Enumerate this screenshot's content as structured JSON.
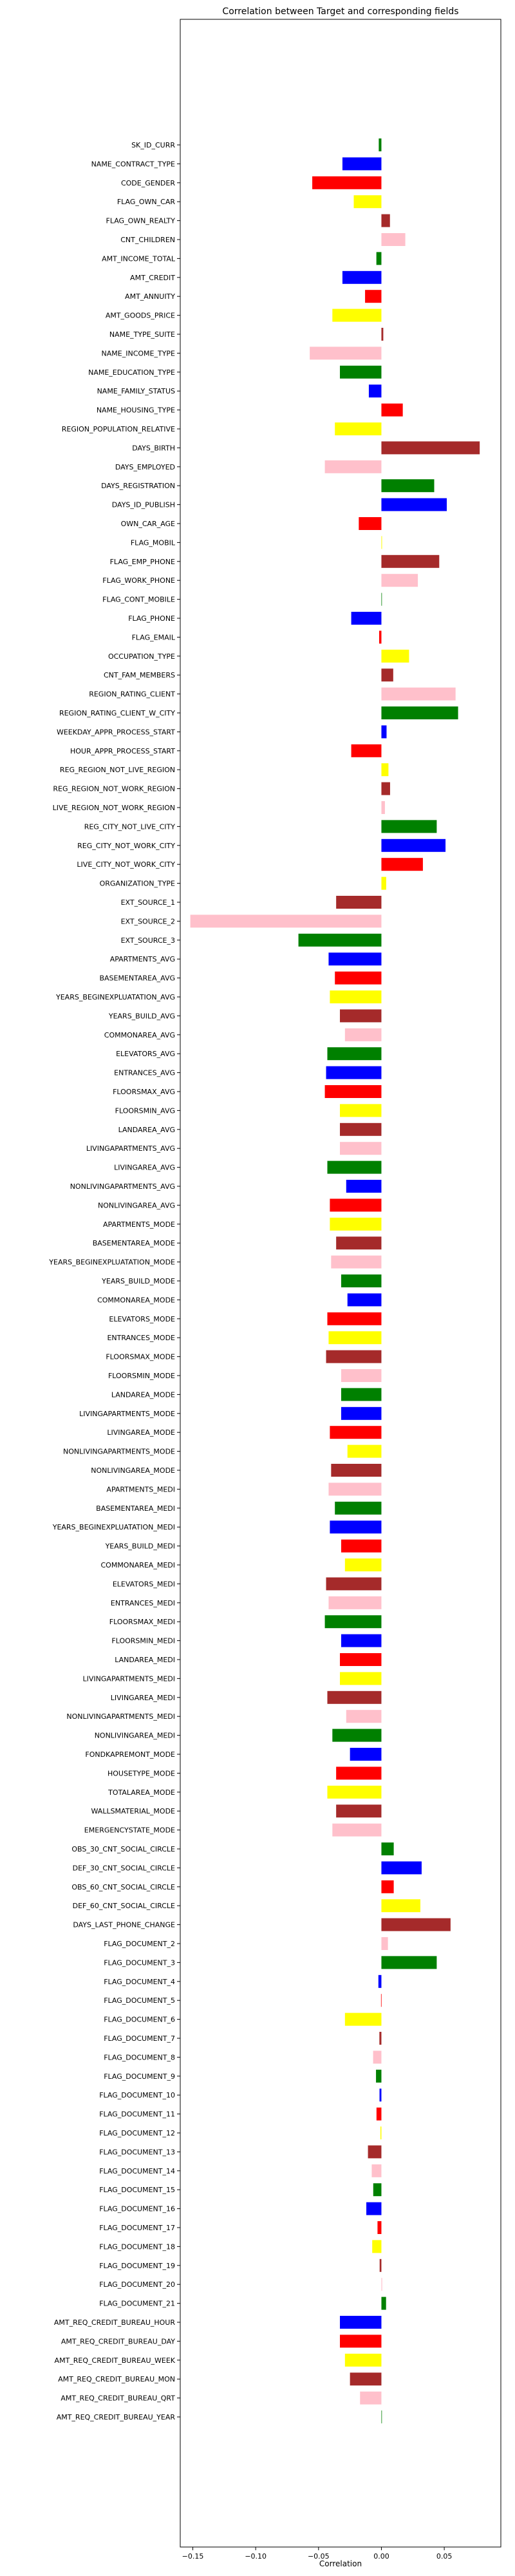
{
  "chart_data": {
    "type": "bar",
    "orientation": "horizontal",
    "title": "Correlation between Target and corresponding fields",
    "xlabel": "Correlation",
    "ylabel": "",
    "xlim": [
      -0.16,
      0.095
    ],
    "xticks": [
      -0.15,
      -0.1,
      -0.05,
      0.0,
      0.05
    ],
    "xtick_labels": [
      "−0.15",
      "−0.10",
      "−0.05",
      "0.00",
      "0.05"
    ],
    "grid": false,
    "legend": "none",
    "palette": [
      "#008000",
      "#0000ff",
      "#ff0000",
      "#ffff00",
      "#a52a2a",
      "#ffc0cb"
    ],
    "categories": [
      "SK_ID_CURR",
      "NAME_CONTRACT_TYPE",
      "CODE_GENDER",
      "FLAG_OWN_CAR",
      "FLAG_OWN_REALTY",
      "CNT_CHILDREN",
      "AMT_INCOME_TOTAL",
      "AMT_CREDIT",
      "AMT_ANNUITY",
      "AMT_GOODS_PRICE",
      "NAME_TYPE_SUITE",
      "NAME_INCOME_TYPE",
      "NAME_EDUCATION_TYPE",
      "NAME_FAMILY_STATUS",
      "NAME_HOUSING_TYPE",
      "REGION_POPULATION_RELATIVE",
      "DAYS_BIRTH",
      "DAYS_EMPLOYED",
      "DAYS_REGISTRATION",
      "DAYS_ID_PUBLISH",
      "OWN_CAR_AGE",
      "FLAG_MOBIL",
      "FLAG_EMP_PHONE",
      "FLAG_WORK_PHONE",
      "FLAG_CONT_MOBILE",
      "FLAG_PHONE",
      "FLAG_EMAIL",
      "OCCUPATION_TYPE",
      "CNT_FAM_MEMBERS",
      "REGION_RATING_CLIENT",
      "REGION_RATING_CLIENT_W_CITY",
      "WEEKDAY_APPR_PROCESS_START",
      "HOUR_APPR_PROCESS_START",
      "REG_REGION_NOT_LIVE_REGION",
      "REG_REGION_NOT_WORK_REGION",
      "LIVE_REGION_NOT_WORK_REGION",
      "REG_CITY_NOT_LIVE_CITY",
      "REG_CITY_NOT_WORK_CITY",
      "LIVE_CITY_NOT_WORK_CITY",
      "ORGANIZATION_TYPE",
      "EXT_SOURCE_1",
      "EXT_SOURCE_2",
      "EXT_SOURCE_3",
      "APARTMENTS_AVG",
      "BASEMENTAREA_AVG",
      "YEARS_BEGINEXPLUATATION_AVG",
      "YEARS_BUILD_AVG",
      "COMMONAREA_AVG",
      "ELEVATORS_AVG",
      "ENTRANCES_AVG",
      "FLOORSMAX_AVG",
      "FLOORSMIN_AVG",
      "LANDAREA_AVG",
      "LIVINGAPARTMENTS_AVG",
      "LIVINGAREA_AVG",
      "NONLIVINGAPARTMENTS_AVG",
      "NONLIVINGAREA_AVG",
      "APARTMENTS_MODE",
      "BASEMENTAREA_MODE",
      "YEARS_BEGINEXPLUATATION_MODE",
      "YEARS_BUILD_MODE",
      "COMMONAREA_MODE",
      "ELEVATORS_MODE",
      "ENTRANCES_MODE",
      "FLOORSMAX_MODE",
      "FLOORSMIN_MODE",
      "LANDAREA_MODE",
      "LIVINGAPARTMENTS_MODE",
      "LIVINGAREA_MODE",
      "NONLIVINGAPARTMENTS_MODE",
      "NONLIVINGAREA_MODE",
      "APARTMENTS_MEDI",
      "BASEMENTAREA_MEDI",
      "YEARS_BEGINEXPLUATATION_MEDI",
      "YEARS_BUILD_MEDI",
      "COMMONAREA_MEDI",
      "ELEVATORS_MEDI",
      "ENTRANCES_MEDI",
      "FLOORSMAX_MEDI",
      "FLOORSMIN_MEDI",
      "LANDAREA_MEDI",
      "LIVINGAPARTMENTS_MEDI",
      "LIVINGAREA_MEDI",
      "NONLIVINGAPARTMENTS_MEDI",
      "NONLIVINGAREA_MEDI",
      "FONDKAPREMONT_MODE",
      "HOUSETYPE_MODE",
      "TOTALAREA_MODE",
      "WALLSMATERIAL_MODE",
      "EMERGENCYSTATE_MODE",
      "OBS_30_CNT_SOCIAL_CIRCLE",
      "DEF_30_CNT_SOCIAL_CIRCLE",
      "OBS_60_CNT_SOCIAL_CIRCLE",
      "DEF_60_CNT_SOCIAL_CIRCLE",
      "DAYS_LAST_PHONE_CHANGE",
      "FLAG_DOCUMENT_2",
      "FLAG_DOCUMENT_3",
      "FLAG_DOCUMENT_4",
      "FLAG_DOCUMENT_5",
      "FLAG_DOCUMENT_6",
      "FLAG_DOCUMENT_7",
      "FLAG_DOCUMENT_8",
      "FLAG_DOCUMENT_9",
      "FLAG_DOCUMENT_10",
      "FLAG_DOCUMENT_11",
      "FLAG_DOCUMENT_12",
      "FLAG_DOCUMENT_13",
      "FLAG_DOCUMENT_14",
      "FLAG_DOCUMENT_15",
      "FLAG_DOCUMENT_16",
      "FLAG_DOCUMENT_17",
      "FLAG_DOCUMENT_18",
      "FLAG_DOCUMENT_19",
      "FLAG_DOCUMENT_20",
      "FLAG_DOCUMENT_21",
      "AMT_REQ_CREDIT_BUREAU_HOUR",
      "AMT_REQ_CREDIT_BUREAU_DAY",
      "AMT_REQ_CREDIT_BUREAU_WEEK",
      "AMT_REQ_CREDIT_BUREAU_MON",
      "AMT_REQ_CREDIT_BUREAU_QRT",
      "AMT_REQ_CREDIT_BUREAU_YEAR"
    ],
    "values": [
      -0.0021,
      -0.031,
      -0.055,
      -0.022,
      0.0068,
      0.019,
      -0.004,
      -0.031,
      -0.013,
      -0.039,
      0.0015,
      -0.057,
      -0.033,
      -0.01,
      0.017,
      -0.037,
      0.0782,
      -0.045,
      0.042,
      0.052,
      -0.018,
      0.0005,
      0.046,
      0.029,
      0.0004,
      -0.024,
      -0.0018,
      0.022,
      0.0094,
      0.059,
      0.061,
      0.0041,
      -0.024,
      0.0056,
      0.0069,
      0.0028,
      0.044,
      0.051,
      0.033,
      0.0038,
      -0.036,
      -0.152,
      -0.066,
      -0.042,
      -0.037,
      -0.041,
      -0.033,
      -0.029,
      -0.043,
      -0.044,
      -0.045,
      -0.033,
      -0.033,
      -0.033,
      -0.043,
      -0.028,
      -0.041,
      -0.041,
      -0.036,
      -0.04,
      -0.032,
      -0.027,
      -0.043,
      -0.042,
      -0.044,
      -0.032,
      -0.032,
      -0.032,
      -0.041,
      -0.027,
      -0.04,
      -0.042,
      -0.037,
      -0.041,
      -0.032,
      -0.029,
      -0.044,
      -0.042,
      -0.045,
      -0.032,
      -0.033,
      -0.033,
      -0.043,
      -0.028,
      -0.039,
      -0.025,
      -0.036,
      -0.043,
      -0.036,
      -0.039,
      0.0098,
      0.032,
      0.0098,
      0.031,
      0.055,
      0.0052,
      0.044,
      -0.0024,
      -0.0003,
      -0.029,
      -0.0016,
      -0.0066,
      -0.0043,
      -0.0015,
      -0.0039,
      -0.0008,
      -0.0107,
      -0.0077,
      -0.0065,
      -0.012,
      -0.0031,
      -0.0073,
      -0.0014,
      0.0006,
      0.0037,
      -0.033,
      -0.033,
      -0.029,
      -0.025,
      -0.017,
      0.0004
    ]
  }
}
